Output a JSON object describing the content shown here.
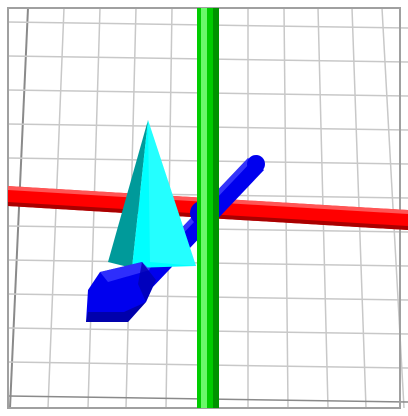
{
  "viewer": {
    "background": "#ffffff",
    "grid_color": "#c8c8c8",
    "grid_dark_color": "#8a8a8a",
    "frame_color": "#a0a0a0"
  },
  "scene": {
    "axes": [
      {
        "name": "x-axis",
        "color": "#ff0000",
        "shade": "#a00000",
        "highlight": "#ff6a6a"
      },
      {
        "name": "y-axis",
        "color": "#00cc00",
        "shade": "#008800",
        "highlight": "#7dff7d"
      },
      {
        "name": "z-axis",
        "color": "#0000ee",
        "shade": "#00009a",
        "highlight": "#4a4aff"
      }
    ],
    "cone": {
      "name": "cone",
      "color": "#00ffff",
      "shade": "#009a9a"
    },
    "arrow": {
      "name": "blue-arrow-head",
      "color": "#0000ee",
      "shade": "#000090"
    }
  }
}
